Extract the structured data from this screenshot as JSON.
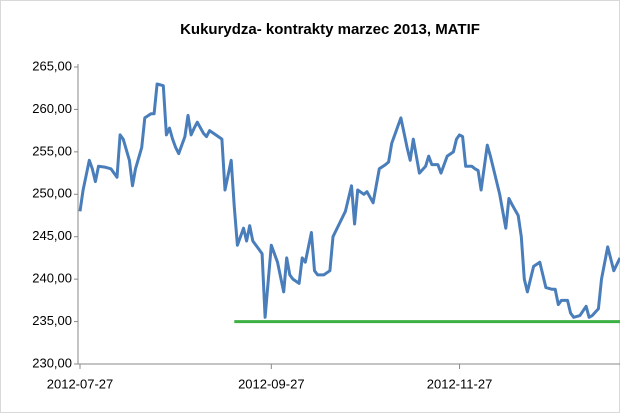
{
  "chart_data": {
    "type": "line",
    "title": "Kukurydza- kontrakty marzec 2013, MATIF",
    "ylim": [
      230,
      265
    ],
    "yticks": [
      {
        "value": 230,
        "label": "230,00"
      },
      {
        "value": 235,
        "label": "235,00"
      },
      {
        "value": 240,
        "label": "240,00"
      },
      {
        "value": 245,
        "label": "245,00"
      },
      {
        "value": 250,
        "label": "250,00"
      },
      {
        "value": 255,
        "label": "255,00"
      },
      {
        "value": 260,
        "label": "260,00"
      },
      {
        "value": 265,
        "label": "265,00"
      }
    ],
    "xlim": [
      "2012-07-27",
      "2013-01-18"
    ],
    "xticks": [
      "2012-07-27",
      "2012-09-27",
      "2012-11-27"
    ],
    "grid": false,
    "series": [
      {
        "color": "#4a7ebb",
        "x": [
          "2012-07-27",
          "2012-07-28",
          "2012-07-30",
          "2012-07-31",
          "2012-08-01",
          "2012-08-02",
          "2012-08-04",
          "2012-08-06",
          "2012-08-08",
          "2012-08-09",
          "2012-08-10",
          "2012-08-12",
          "2012-08-13",
          "2012-08-14",
          "2012-08-16",
          "2012-08-17",
          "2012-08-19",
          "2012-08-20",
          "2012-08-21",
          "2012-08-23",
          "2012-08-24",
          "2012-08-25",
          "2012-08-26",
          "2012-08-27",
          "2012-08-28",
          "2012-08-30",
          "2012-08-31",
          "2012-09-01",
          "2012-09-02",
          "2012-09-03",
          "2012-09-05",
          "2012-09-06",
          "2012-09-07",
          "2012-09-09",
          "2012-09-11",
          "2012-09-12",
          "2012-09-14",
          "2012-09-15",
          "2012-09-16",
          "2012-09-18",
          "2012-09-19",
          "2012-09-20",
          "2012-09-21",
          "2012-09-23",
          "2012-09-24",
          "2012-09-25",
          "2012-09-27",
          "2012-09-28",
          "2012-09-29",
          "2012-10-01",
          "2012-10-02",
          "2012-10-03",
          "2012-10-04",
          "2012-10-06",
          "2012-10-07",
          "2012-10-08",
          "2012-10-10",
          "2012-10-11",
          "2012-10-12",
          "2012-10-14",
          "2012-10-16",
          "2012-10-17",
          "2012-10-19",
          "2012-10-21",
          "2012-10-23",
          "2012-10-24",
          "2012-10-25",
          "2012-10-27",
          "2012-10-28",
          "2012-10-30",
          "2012-11-01",
          "2012-11-03",
          "2012-11-04",
          "2012-11-05",
          "2012-11-07",
          "2012-11-08",
          "2012-11-10",
          "2012-11-11",
          "2012-11-12",
          "2012-11-14",
          "2012-11-16",
          "2012-11-17",
          "2012-11-18",
          "2012-11-20",
          "2012-11-21",
          "2012-11-23",
          "2012-11-25",
          "2012-11-26",
          "2012-11-27",
          "2012-11-28",
          "2012-11-29",
          "2012-12-01",
          "2012-12-02",
          "2012-12-03",
          "2012-12-04",
          "2012-12-06",
          "2012-12-07",
          "2012-12-08",
          "2012-12-10",
          "2012-12-12",
          "2012-12-13",
          "2012-12-14",
          "2012-12-16",
          "2012-12-17",
          "2012-12-18",
          "2012-12-19",
          "2012-12-21",
          "2012-12-23",
          "2012-12-25",
          "2012-12-27",
          "2012-12-28",
          "2012-12-29",
          "2012-12-30",
          "2013-01-01",
          "2013-01-02",
          "2013-01-03",
          "2013-01-05",
          "2013-01-07",
          "2013-01-08",
          "2013-01-09",
          "2013-01-11",
          "2013-01-12",
          "2013-01-14",
          "2013-01-16",
          "2013-01-18"
        ],
        "values": [
          248,
          250.5,
          254,
          253,
          251.5,
          253.3,
          253.2,
          253,
          252,
          257,
          256.5,
          254,
          251,
          253,
          255.5,
          259,
          259.5,
          259.5,
          263,
          262.8,
          257,
          257.8,
          256.5,
          255.5,
          254.8,
          256.8,
          259.3,
          257,
          257.8,
          258.5,
          257.2,
          256.8,
          257.5,
          257,
          256.5,
          250.5,
          254,
          248.5,
          244,
          246,
          244.5,
          246.3,
          244.5,
          243.5,
          243,
          235.5,
          244,
          243,
          242,
          238.5,
          242.5,
          240.5,
          240,
          239.5,
          242.5,
          242,
          245.5,
          241,
          240.5,
          240.5,
          241,
          245,
          246.5,
          248,
          251,
          246.5,
          250.5,
          250,
          250.3,
          249,
          253,
          253.5,
          253.8,
          256,
          258,
          259,
          255.5,
          254,
          256.5,
          252.5,
          253.3,
          254.5,
          253.5,
          253.5,
          252.5,
          254.5,
          255,
          256.5,
          257,
          256.8,
          253.3,
          253.3,
          253,
          252.8,
          250.5,
          255.8,
          254.5,
          253,
          250,
          246,
          249.5,
          248.8,
          247.5,
          245,
          240,
          238.5,
          241.5,
          242,
          239,
          238.8,
          238.8,
          237,
          237.5,
          237.5,
          236,
          235.5,
          235.7,
          236.8,
          235.5,
          235.7,
          236.5,
          240,
          243.8,
          241,
          242.5
        ]
      },
      {
        "color": "#3cb043",
        "x": [
          "2012-09-15",
          "2013-01-18"
        ],
        "values": [
          235,
          235
        ]
      }
    ]
  }
}
